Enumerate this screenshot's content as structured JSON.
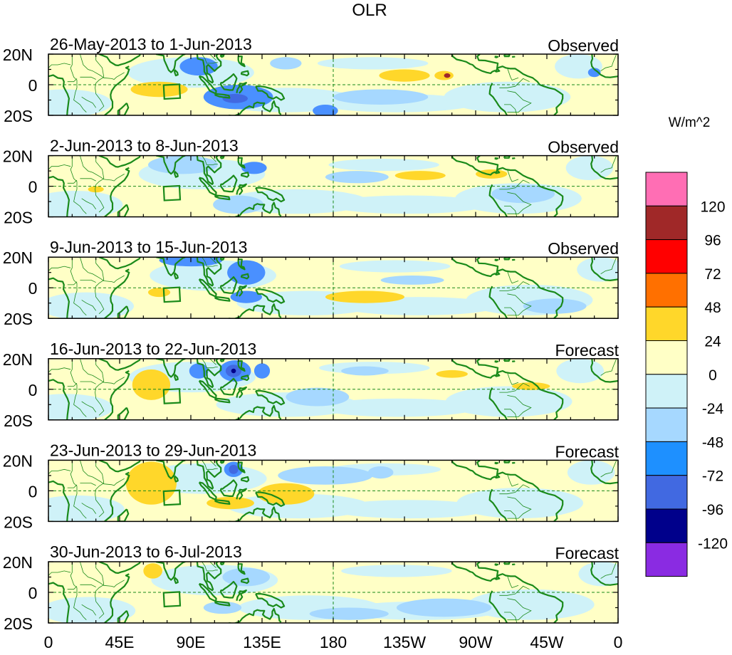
{
  "figure": {
    "title": "OLR",
    "units_label": "W/m^2"
  },
  "axes": {
    "lat_labels": [
      "20N",
      "0",
      "20S"
    ],
    "lon_labels": [
      "0",
      "45E",
      "90E",
      "135E",
      "180",
      "135W",
      "90W",
      "45W",
      "0"
    ],
    "lat_range": [
      -20,
      20
    ],
    "lon_range": [
      0,
      360
    ]
  },
  "panels": [
    {
      "period": "26-May-2013 to 1-Jun-2013",
      "type": "Observed",
      "blobs": [
        {
          "lon": 95,
          "lat": 12,
          "rx": 12,
          "ry": 6,
          "level": -2
        },
        {
          "lon": 120,
          "lat": -8,
          "rx": 22,
          "ry": 8,
          "level": -2
        },
        {
          "lon": 118,
          "lat": -9,
          "rx": 8,
          "ry": 3,
          "level": -3
        },
        {
          "lon": 70,
          "lat": -3,
          "rx": 18,
          "ry": 5,
          "level": 1
        },
        {
          "lon": 225,
          "lat": 6,
          "rx": 16,
          "ry": 4,
          "level": 1
        },
        {
          "lon": 250,
          "lat": 6,
          "rx": 6,
          "ry": 3,
          "level": 1
        },
        {
          "lon": 252,
          "lat": 6,
          "rx": 2,
          "ry": 1.5,
          "level": 3
        },
        {
          "lon": 345,
          "lat": 8,
          "rx": 4,
          "ry": 3,
          "level": -2
        },
        {
          "lon": 150,
          "lat": 14,
          "rx": 10,
          "ry": 4,
          "level": -1
        },
        {
          "lon": 175,
          "lat": -17,
          "rx": 8,
          "ry": 4,
          "level": -2
        },
        {
          "lon": 210,
          "lat": -8,
          "rx": 30,
          "ry": 5,
          "level": -1
        }
      ]
    },
    {
      "period": "2-Jun-2013 to 8-Jun-2013",
      "type": "Observed",
      "blobs": [
        {
          "lon": 85,
          "lat": 14,
          "rx": 22,
          "ry": 6,
          "level": -1
        },
        {
          "lon": 130,
          "lat": 12,
          "rx": 8,
          "ry": 4,
          "level": -2
        },
        {
          "lon": 120,
          "lat": -12,
          "rx": 16,
          "ry": 6,
          "level": -1
        },
        {
          "lon": 235,
          "lat": 7,
          "rx": 16,
          "ry": 3,
          "level": 1
        },
        {
          "lon": 280,
          "lat": 8,
          "rx": 10,
          "ry": 3,
          "level": 1
        },
        {
          "lon": 30,
          "lat": -2,
          "rx": 5,
          "ry": 2,
          "level": 1
        },
        {
          "lon": 195,
          "lat": 6,
          "rx": 20,
          "ry": 4,
          "level": -1
        },
        {
          "lon": 300,
          "lat": -5,
          "rx": 20,
          "ry": 6,
          "level": -1
        }
      ]
    },
    {
      "period": "9-Jun-2013 to 15-Jun-2013",
      "type": "Observed",
      "blobs": [
        {
          "lon": 90,
          "lat": 18,
          "rx": 20,
          "ry": 4,
          "level": -2
        },
        {
          "lon": 125,
          "lat": 10,
          "rx": 12,
          "ry": 8,
          "level": -2
        },
        {
          "lon": 125,
          "lat": -6,
          "rx": 10,
          "ry": 4,
          "level": -2
        },
        {
          "lon": 70,
          "lat": -3,
          "rx": 7,
          "ry": 3,
          "level": 1
        },
        {
          "lon": 200,
          "lat": -6,
          "rx": 25,
          "ry": 4,
          "level": 1
        },
        {
          "lon": 230,
          "lat": 5,
          "rx": 20,
          "ry": 3,
          "level": -1
        },
        {
          "lon": 320,
          "lat": -12,
          "rx": 20,
          "ry": 5,
          "level": -1
        }
      ]
    },
    {
      "period": "16-Jun-2013 to 22-Jun-2013",
      "type": "Forecast",
      "blobs": [
        {
          "lon": 65,
          "lat": 3,
          "rx": 12,
          "ry": 10,
          "level": 1
        },
        {
          "lon": 118,
          "lat": 12,
          "rx": 10,
          "ry": 7,
          "level": -2
        },
        {
          "lon": 117,
          "lat": 12,
          "rx": 5,
          "ry": 4,
          "level": -3
        },
        {
          "lon": 117,
          "lat": 12,
          "rx": 1.5,
          "ry": 1.5,
          "level": -4
        },
        {
          "lon": 135,
          "lat": 12,
          "rx": 5,
          "ry": 5,
          "level": -2
        },
        {
          "lon": 95,
          "lat": 12,
          "rx": 6,
          "ry": 5,
          "level": -2
        },
        {
          "lon": 255,
          "lat": 10,
          "rx": 10,
          "ry": 2.5,
          "level": 1
        },
        {
          "lon": 305,
          "lat": 2,
          "rx": 12,
          "ry": 2.5,
          "level": 1
        },
        {
          "lon": 170,
          "lat": -5,
          "rx": 20,
          "ry": 6,
          "level": -1
        },
        {
          "lon": 200,
          "lat": 12,
          "rx": 15,
          "ry": 3,
          "level": -1
        }
      ]
    },
    {
      "period": "23-Jun-2013 to 29-Jun-2013",
      "type": "Forecast",
      "blobs": [
        {
          "lon": 65,
          "lat": 5,
          "rx": 16,
          "ry": 14,
          "level": 1
        },
        {
          "lon": 150,
          "lat": -2,
          "rx": 18,
          "ry": 7,
          "level": 1
        },
        {
          "lon": 115,
          "lat": -8,
          "rx": 15,
          "ry": 4,
          "level": 1
        },
        {
          "lon": 117,
          "lat": 14,
          "rx": 6,
          "ry": 5,
          "level": -2
        },
        {
          "lon": 117,
          "lat": 14,
          "rx": 3,
          "ry": 3,
          "level": -3
        },
        {
          "lon": 175,
          "lat": 10,
          "rx": 30,
          "ry": 6,
          "level": -1
        },
        {
          "lon": 210,
          "lat": 12,
          "rx": 8,
          "ry": 4,
          "level": -1
        }
      ]
    },
    {
      "period": "30-Jun-2013 to 6-Jul-2013",
      "type": "Forecast",
      "blobs": [
        {
          "lon": 66,
          "lat": 14,
          "rx": 6,
          "ry": 5,
          "level": 1
        },
        {
          "lon": 125,
          "lat": 10,
          "rx": 15,
          "ry": 6,
          "level": -1
        },
        {
          "lon": 110,
          "lat": -10,
          "rx": 12,
          "ry": 4,
          "level": -1
        },
        {
          "lon": 250,
          "lat": -10,
          "rx": 30,
          "ry": 6,
          "level": -1
        },
        {
          "lon": 190,
          "lat": -14,
          "rx": 25,
          "ry": 4,
          "level": -1
        }
      ]
    }
  ],
  "colorbar": {
    "labels": [
      "120",
      "96",
      "72",
      "48",
      "24",
      "0",
      "-24",
      "-48",
      "-72",
      "-96",
      "-120"
    ],
    "colors_top_to_bottom": [
      "#ff6eb4",
      "#a02828",
      "#ff0000",
      "#ff7000",
      "#ffd72a",
      "#ffffc6",
      "#cff2f8",
      "#a6d8ff",
      "#1e90ff",
      "#4169e1",
      "#00008b",
      "#8a2be2"
    ],
    "level_colors": {
      "1": "#ffd72a",
      "2": "#ff7000",
      "3": "#a02828",
      "-1": "#a6d8ff",
      "-2": "#4a90ff",
      "-3": "#4169e1",
      "-4": "#00008b"
    }
  },
  "map_style": {
    "ocean_positive": "#ffffc6",
    "ocean_negative": "#cff2f8",
    "coast_color": "#1a8a1a",
    "frame_color": "#000000"
  }
}
